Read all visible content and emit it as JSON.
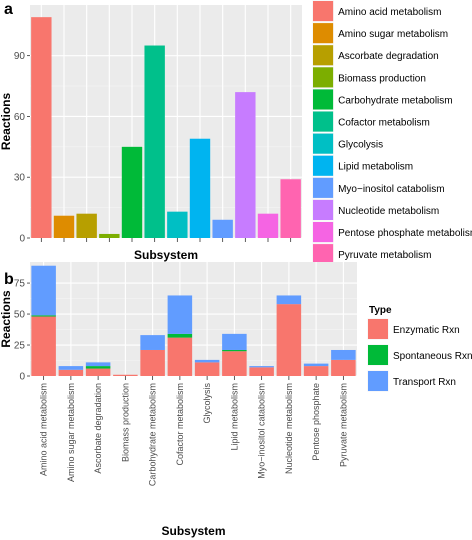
{
  "panels": {
    "a": {
      "label": "a"
    },
    "b": {
      "label": "b"
    }
  },
  "chart_data": [
    {
      "type": "bar",
      "panel": "a",
      "xlabel": "Subsystem",
      "ylabel": "Reactions",
      "ylim": [
        0,
        115
      ],
      "yticks": [
        0,
        30,
        60,
        90
      ],
      "grid": true,
      "legend_position": "right",
      "categories": [
        "Amino acid metabolism",
        "Amino sugar metabolism",
        "Ascorbate degradation",
        "Biomass production",
        "Carbohydrate metabolism",
        "Cofactor metabolism",
        "Glycolysis",
        "Lipid metabolism",
        "Myo−inositol catabolism",
        "Nucleotide metabolism",
        "Pentose phosphate metabolism",
        "Pyruvate metabolism"
      ],
      "values": [
        109,
        11,
        12,
        2,
        45,
        95,
        13,
        49,
        9,
        72,
        12,
        29
      ],
      "colors": [
        "#F8766D",
        "#DE8C00",
        "#B79F00",
        "#7CAE00",
        "#00BA38",
        "#00C08B",
        "#00BFC4",
        "#00B4F0",
        "#619CFF",
        "#C77CFF",
        "#F564E3",
        "#FF64B0"
      ],
      "legend": [
        "Amino acid metabolism",
        "Amino sugar metabolism",
        "Ascorbate degradation",
        "Biomass production",
        "Carbohydrate metabolism",
        "Cofactor metabolism",
        "Glycolysis",
        "Lipid metabolism",
        "Myo−inositol catabolism",
        "Nucleotide metabolism",
        "Pentose phosphate metabolism",
        "Pyruvate metabolism"
      ]
    },
    {
      "type": "bar",
      "stacked": true,
      "panel": "b",
      "xlabel": "Subsystem",
      "ylabel": "Reactions",
      "ylim": [
        0,
        92
      ],
      "yticks": [
        0,
        25,
        50,
        75
      ],
      "grid": true,
      "legend_title": "Type",
      "legend_position": "right",
      "categories": [
        "Amino acid metabolism",
        "Amino sugar metabolism",
        "Ascorbate degradation",
        "Biomass production",
        "Carbohydrate metabolism",
        "Cofactor metabolism",
        "Glycolysis",
        "Lipid metabolism",
        "Myo−inositol catabolism",
        "Nucleotide metabolism",
        "Pentose phosphate",
        "Pyruvate metabolism"
      ],
      "series": [
        {
          "name": "Enzymatic Rxn",
          "color": "#F8766D",
          "values": [
            48,
            5,
            6,
            1,
            21,
            31,
            11,
            20,
            7,
            58,
            8,
            13
          ]
        },
        {
          "name": "Spontaneous Rxn",
          "color": "#00BA38",
          "values": [
            1,
            0,
            2,
            0,
            0,
            3,
            0,
            1,
            0,
            0,
            0,
            0
          ]
        },
        {
          "name": "Transport Rxn",
          "color": "#619CFF",
          "values": [
            40,
            3,
            3,
            0,
            12,
            31,
            2,
            13,
            1,
            7,
            2,
            8
          ]
        }
      ]
    }
  ]
}
